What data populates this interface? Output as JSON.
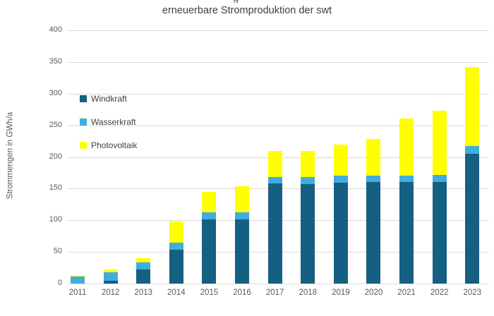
{
  "header": {
    "cropped_line_fragment": "g",
    "title": "erneuerbare Stromproduktion der swt"
  },
  "y_axis": {
    "label": "Strommengen in GWh/a"
  },
  "chart_data": {
    "type": "bar",
    "stacked": true,
    "title": "erneuerbare Stromproduktion der swt",
    "xlabel": "",
    "ylabel": "Strommengen in GWh/a",
    "ylim": [
      0,
      400
    ],
    "yticks": [
      0,
      50,
      100,
      150,
      200,
      250,
      300,
      350,
      400
    ],
    "grid": true,
    "legend_position": "inside-top-left",
    "categories": [
      "2011",
      "2012",
      "2013",
      "2014",
      "2015",
      "2016",
      "2017",
      "2018",
      "2019",
      "2020",
      "2021",
      "2022",
      "2023"
    ],
    "series": [
      {
        "name": "Windkraft",
        "color": "#156082",
        "values": [
          0,
          5,
          22,
          54,
          101,
          101,
          158,
          157,
          159,
          160,
          160,
          161,
          205
        ]
      },
      {
        "name": "Wasserkraft",
        "color": "#41ACDE",
        "values": [
          11,
          13,
          11,
          11,
          12,
          12,
          10,
          11,
          12,
          11,
          11,
          11,
          12
        ]
      },
      {
        "name": "Photovoltaik",
        "color": "#FFFF00",
        "values": [
          1,
          4,
          7,
          33,
          32,
          41,
          41,
          42,
          49,
          58,
          90,
          101,
          125
        ]
      }
    ],
    "totals": [
      12,
      22,
      40,
      98,
      145,
      154,
      209,
      210,
      220,
      229,
      261,
      273,
      342
    ]
  },
  "colors": {
    "gridline": "#d9d9d9",
    "tick_text": "#595959",
    "title_text": "#3f3f3f",
    "legend_text": "#404040",
    "background": "#ffffff"
  }
}
